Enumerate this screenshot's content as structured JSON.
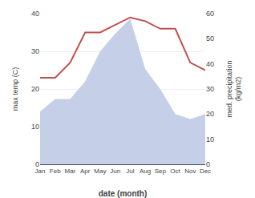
{
  "chart_data": {
    "type": "line",
    "xlabel": "date (month)",
    "ylabel": "max temp (C)",
    "y2label": "med. precipitation\n(kg/m2)",
    "categories": [
      "Jan",
      "Feb",
      "Mar",
      "Apr",
      "May",
      "Jun",
      "Jul",
      "Aug",
      "Sep",
      "Oct",
      "Nov",
      "Dec"
    ],
    "series": [
      {
        "type": "area",
        "color": "#c5d0e8",
        "axis": "y2",
        "values": [
          21,
          26,
          26,
          33,
          45,
          52,
          58,
          38,
          30,
          20,
          18,
          20
        ]
      },
      {
        "type": "line",
        "color": "#c0504d",
        "values": [
          23,
          23,
          27,
          35,
          35,
          37,
          39,
          38,
          36,
          36,
          27,
          25
        ]
      }
    ],
    "ylim": [
      0,
      40
    ],
    "yticks": [
      0,
      10,
      20,
      30,
      40
    ],
    "y2lim": [
      0,
      60
    ],
    "y2ticks": [
      0,
      10,
      20,
      30,
      40,
      50,
      60
    ],
    "grid": true
  }
}
